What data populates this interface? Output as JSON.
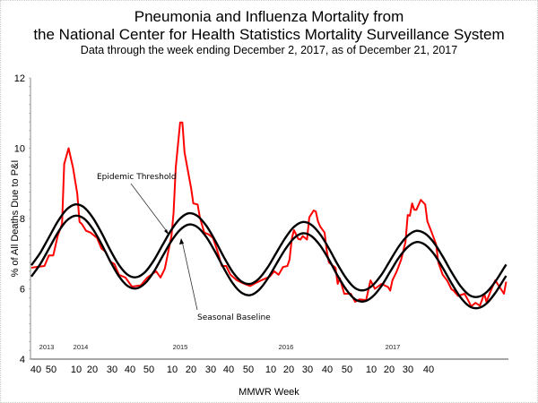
{
  "chart_data": {
    "type": "line",
    "title": "Pneumonia and Influenza Mortality from",
    "title_line2": "the National Center for Health Statistics Mortality Surveillance System",
    "subtitle": "Data through the week ending December 2, 2017, as of December 21, 2017",
    "xlabel": "MMWR Week",
    "ylabel": "% of All Deaths Due to P&I",
    "ylim": [
      4,
      12
    ],
    "yticks": [
      "4",
      "6",
      "8",
      "10",
      "12"
    ],
    "xtick_labels": [
      "40",
      "50",
      "10",
      "20",
      "30",
      "40",
      "50",
      "10",
      "20",
      "30",
      "40",
      "50",
      "10",
      "20",
      "30",
      "40",
      "50",
      "10",
      "20",
      "30",
      "40"
    ],
    "year_labels": [
      "2013",
      "2014",
      "2015",
      "2016",
      "2017"
    ],
    "grid": false,
    "colors": {
      "pi": "#ff0000",
      "baseline": "#000000",
      "threshold": "#000000"
    },
    "annotations": {
      "threshold": "Epidemic Threshold",
      "baseline": "Seasonal Baseline"
    },
    "pi_series": {
      "x": [
        "2013-40",
        "2013-42",
        "2013-46",
        "2013-48",
        "2013-50",
        "2013-52",
        "2014-02",
        "2014-03",
        "2014-05",
        "2014-07",
        "2014-09",
        "2014-10",
        "2014-11",
        "2014-13",
        "2014-15",
        "2014-18",
        "2014-20",
        "2014-22",
        "2014-24",
        "2014-26",
        "2014-28",
        "2014-31",
        "2014-34",
        "2014-38",
        "2014-41",
        "2014-45",
        "2014-47",
        "2014-49",
        "2014-52",
        "2014-53",
        "2015-01",
        "2015-03",
        "2015-04",
        "2015-05",
        "2015-08",
        "2015-09",
        "2015-11",
        "2015-12",
        "2015-14",
        "2015-16",
        "2015-18",
        "2015-20",
        "2015-22",
        "2015-24",
        "2015-26",
        "2015-29",
        "2015-32",
        "2015-35",
        "2015-37",
        "2015-40",
        "2015-43",
        "2015-44",
        "2015-46",
        "2015-48",
        "2015-50",
        "2015-52",
        "2016-01",
        "2016-02",
        "2016-03",
        "2016-05",
        "2016-06",
        "2016-07",
        "2016-09",
        "2016-10",
        "2016-12",
        "2016-13",
        "2016-14",
        "2016-15",
        "2016-17",
        "2016-18",
        "2016-19",
        "2016-22",
        "2016-23",
        "2016-24",
        "2016-26",
        "2016-29",
        "2016-31",
        "2016-33",
        "2016-36",
        "2016-38",
        "2016-40",
        "2016-43",
        "2016-46",
        "2016-47",
        "2016-48",
        "2016-50",
        "2016-52",
        "2017-02",
        "2017-03",
        "2017-04",
        "2017-05",
        "2017-06",
        "2017-07",
        "2017-09",
        "2017-11",
        "2017-12",
        "2017-14",
        "2017-16",
        "2017-17",
        "2017-19",
        "2017-21",
        "2017-23",
        "2017-24",
        "2017-26",
        "2017-29",
        "2017-31",
        "2017-32",
        "2017-34",
        "2017-36",
        "2017-38",
        "2017-39",
        "2017-41",
        "2017-43",
        "2017-45",
        "2017-47",
        "2017-48"
      ],
      "values": [
        6.6,
        6.62,
        6.65,
        6.95,
        6.95,
        7.5,
        7.85,
        9.55,
        10.0,
        9.45,
        8.7,
        7.9,
        7.85,
        7.65,
        7.6,
        7.45,
        7.15,
        7.05,
        6.78,
        6.7,
        6.4,
        6.32,
        6.06,
        6.1,
        6.32,
        6.5,
        6.32,
        6.57,
        7.5,
        8.17,
        9.45,
        10.73,
        10.73,
        9.88,
        8.87,
        8.43,
        8.4,
        8.03,
        7.6,
        7.55,
        7.45,
        7.08,
        6.65,
        6.65,
        6.4,
        6.24,
        6.15,
        6.08,
        6.15,
        6.24,
        6.32,
        6.35,
        6.5,
        6.4,
        6.62,
        6.65,
        6.83,
        7.42,
        7.67,
        7.42,
        7.4,
        7.5,
        7.4,
        8.03,
        8.23,
        8.2,
        7.92,
        7.77,
        7.6,
        7.08,
        6.75,
        6.6,
        6.14,
        6.3,
        5.86,
        5.86,
        5.63,
        5.7,
        5.68,
        6.24,
        6.0,
        6.14,
        6.05,
        5.95,
        6.24,
        6.5,
        6.83,
        7.33,
        8.1,
        8.08,
        8.43,
        8.25,
        8.25,
        8.53,
        8.4,
        7.92,
        7.6,
        7.26,
        6.75,
        6.4,
        6.24,
        5.99,
        5.95,
        5.8,
        5.86,
        5.63,
        5.5,
        5.6,
        5.52,
        5.86,
        5.63,
        5.95,
        6.24,
        6.05,
        5.86,
        6.2
      ]
    },
    "model_x": [
      "2013-40",
      "2013-44",
      "2013-48",
      "2013-52",
      "2014-04",
      "2014-08",
      "2014-12",
      "2014-16",
      "2014-20",
      "2014-24",
      "2014-28",
      "2014-32",
      "2014-36",
      "2014-40",
      "2014-44",
      "2014-48",
      "2014-52",
      "2015-03",
      "2015-07",
      "2015-11",
      "2015-15",
      "2015-19",
      "2015-23",
      "2015-27",
      "2015-31",
      "2015-35",
      "2015-39",
      "2015-43",
      "2015-47",
      "2015-51",
      "2016-03",
      "2016-07",
      "2016-11",
      "2016-15",
      "2016-19",
      "2016-23",
      "2016-27",
      "2016-31",
      "2016-35",
      "2016-39",
      "2016-43",
      "2016-47",
      "2016-51",
      "2017-03",
      "2017-07",
      "2017-11",
      "2017-15",
      "2017-19",
      "2017-23",
      "2017-27",
      "2017-31",
      "2017-35",
      "2017-39",
      "2017-43",
      "2017-47",
      "2017-48"
    ],
    "baseline": [
      6.35,
      6.7,
      7.14,
      7.59,
      7.93,
      8.08,
      8.0,
      7.71,
      7.28,
      6.79,
      6.36,
      6.08,
      6.01,
      6.16,
      6.49,
      6.93,
      7.36,
      7.68,
      7.83,
      7.75,
      7.47,
      7.05,
      6.58,
      6.16,
      5.89,
      5.82,
      5.97,
      6.29,
      6.71,
      7.12,
      7.44,
      7.58,
      7.5,
      7.23,
      6.83,
      6.37,
      5.97,
      5.7,
      5.64,
      5.78,
      6.08,
      6.49,
      6.89,
      7.19,
      7.33,
      7.25,
      6.99,
      6.6,
      6.16,
      5.77,
      5.51,
      5.45,
      5.58,
      5.88,
      6.27,
      6.37
    ],
    "threshold": [
      6.67,
      7.02,
      7.46,
      7.91,
      8.25,
      8.4,
      8.32,
      8.03,
      7.6,
      7.11,
      6.68,
      6.4,
      6.33,
      6.48,
      6.81,
      7.25,
      7.68,
      8.0,
      8.15,
      8.07,
      7.79,
      7.37,
      6.9,
      6.48,
      6.21,
      6.14,
      6.29,
      6.61,
      7.03,
      7.44,
      7.76,
      7.9,
      7.82,
      7.55,
      7.15,
      6.69,
      6.29,
      6.02,
      5.96,
      6.1,
      6.4,
      6.81,
      7.21,
      7.51,
      7.65,
      7.57,
      7.31,
      6.92,
      6.48,
      6.09,
      5.83,
      5.77,
      5.9,
      6.2,
      6.59,
      6.69
    ]
  }
}
